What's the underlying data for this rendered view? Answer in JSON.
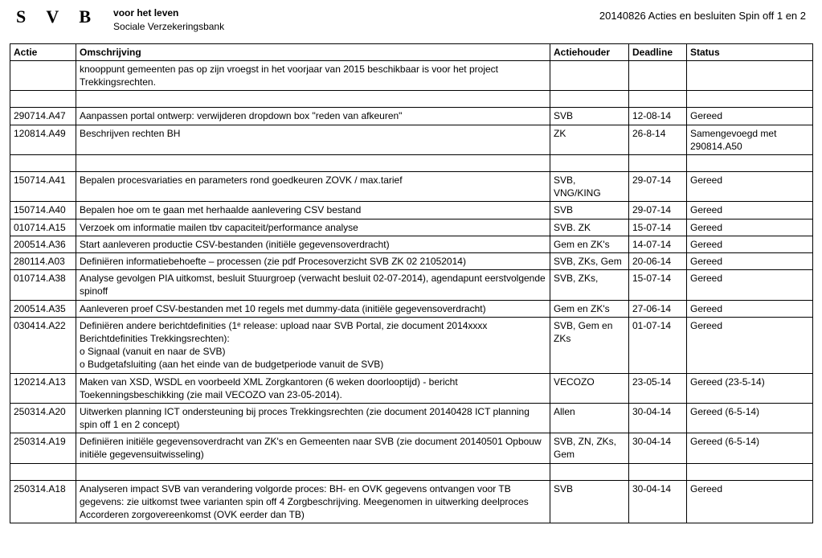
{
  "header": {
    "logo": "S V B",
    "subtitle_line1": "voor het leven",
    "subtitle_line2": "Sociale Verzekeringsbank",
    "doc_title": "20140826 Acties en besluiten Spin off 1 en 2"
  },
  "table": {
    "columns": [
      "Actie",
      "Omschrijving",
      "Actiehouder",
      "Deadline",
      "Status"
    ],
    "rows": [
      {
        "actie": "",
        "oms": "knooppunt gemeenten pas op zijn vroegst in het voorjaar van 2015 beschikbaar is voor het project Trekkingsrechten.",
        "houder": "",
        "deadline": "",
        "status": ""
      },
      {
        "spacer": true
      },
      {
        "actie": "290714.A47",
        "oms": "Aanpassen portal ontwerp: verwijderen dropdown box \"reden van afkeuren\"",
        "houder": "SVB",
        "deadline": "12-08-14",
        "status": "Gereed"
      },
      {
        "actie": "120814.A49",
        "oms": "Beschrijven rechten BH",
        "houder": "ZK",
        "deadline": "26-8-14",
        "status": "Samengevoegd met 290814.A50"
      },
      {
        "spacer": true
      },
      {
        "actie": "150714.A41",
        "oms": "Bepalen procesvariaties en parameters rond goedkeuren ZOVK / max.tarief",
        "houder": "SVB, VNG/KING",
        "deadline": "29-07-14",
        "status": "Gereed"
      },
      {
        "actie": "150714.A40",
        "oms": "Bepalen hoe om te gaan met herhaalde aanlevering CSV bestand",
        "houder": "SVB",
        "deadline": "29-07-14",
        "status": "Gereed"
      },
      {
        "actie": "010714.A15",
        "oms": "Verzoek om informatie mailen tbv capaciteit/performance analyse",
        "houder": "SVB. ZK",
        "deadline": "15-07-14",
        "status": "Gereed"
      },
      {
        "actie": "200514.A36",
        "oms": "Start aanleveren productie CSV-bestanden (initiële gegevensoverdracht)",
        "houder": "Gem en ZK's",
        "deadline": "14-07-14",
        "status": "Gereed"
      },
      {
        "actie": "280114.A03",
        "oms": "Definiëren informatiebehoefte  – processen (zie pdf Procesoverzicht SVB ZK 02 21052014)",
        "houder": "SVB, ZKs, Gem",
        "deadline": "20-06-14",
        "status": "Gereed"
      },
      {
        "actie": "010714.A38",
        "oms": "Analyse gevolgen PIA uitkomst, besluit Stuurgroep (verwacht besluit 02-07-2014), agendapunt eerstvolgende spinoff",
        "houder": "SVB, ZKs,",
        "deadline": "15-07-14",
        "status": "Gereed"
      },
      {
        "actie": "200514.A35",
        "oms": "Aanleveren proef CSV-bestanden met 10 regels met dummy-data (initiële gegevensoverdracht)",
        "houder": "Gem en ZK's",
        "deadline": "27-06-14",
        "status": "Gereed"
      },
      {
        "actie": "030414.A22",
        "oms": "Definiëren andere berichtdefinities (1ᵉ release: upload naar SVB Portal, zie document 2014xxxx Berichtdefinities Trekkingsrechten):\n      o   Signaal (vanuit en naar de SVB)\n      o   Budgetafsluiting (aan het einde van de budgetperiode vanuit de SVB)",
        "houder": "SVB, Gem en ZKs",
        "deadline": "01-07-14",
        "status": "Gereed"
      },
      {
        "actie": "120214.A13",
        "oms": "Maken van XSD, WSDL en voorbeeld XML Zorgkantoren (6 weken doorlooptijd) - bericht Toekenningsbeschikking (zie mail VECOZO van 23-05-2014).",
        "houder": "VECOZO",
        "deadline": "23-05-14",
        "status": "Gereed (23-5-14)"
      },
      {
        "actie": "250314.A20",
        "oms": "Uitwerken planning  ICT ondersteuning bij proces Trekkingsrechten (zie document 20140428 ICT planning spin off 1 en 2 concept)",
        "houder": "Allen",
        "deadline": "30-04-14",
        "status": "Gereed (6-5-14)"
      },
      {
        "actie": "250314.A19",
        "oms": "Definiëren initiële gegevensoverdracht van ZK's en Gemeenten naar SVB (zie document 20140501 Opbouw initiële gegevensuitwisseling)",
        "houder": "SVB, ZN, ZKs, Gem",
        "deadline": "30-04-14",
        "status": "Gereed (6-5-14)"
      },
      {
        "spacer": true
      },
      {
        "actie": "250314.A18",
        "oms": "Analyseren impact SVB van verandering volgorde proces: BH- en OVK gegevens ontvangen voor TB gegevens: zie uitkomst twee varianten spin off 4 Zorgbeschrijving. Meegenomen in uitwerking deelproces Accorderen zorgovereenkomst (OVK eerder dan TB)",
        "houder": "SVB",
        "deadline": "30-04-14",
        "status": "Gereed"
      }
    ]
  }
}
